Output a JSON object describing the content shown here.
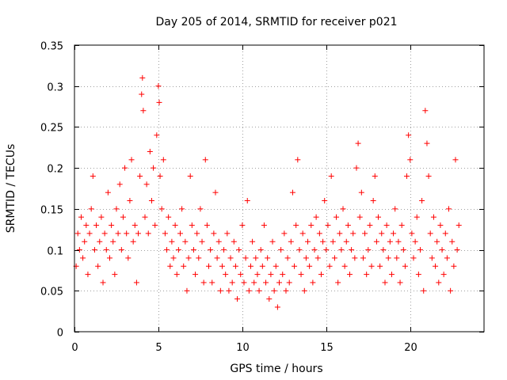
{
  "chart_data": {
    "type": "scatter",
    "title": "Day 205 of 2014, SRMTID for receiver p021",
    "xlabel": "GPS time / hours",
    "ylabel": "SRMTID / TECUs",
    "xlim": [
      0,
      24.4
    ],
    "ylim": [
      0,
      0.35
    ],
    "xticks": [
      0,
      5,
      10,
      15,
      20
    ],
    "xtick_labels": [
      "0",
      "5",
      "10",
      "15",
      "20"
    ],
    "yticks": [
      0,
      0.05,
      0.1,
      0.15,
      0.2,
      0.25,
      0.3,
      0.35
    ],
    "ytick_labels": [
      "0",
      "0.05",
      "0.1",
      "0.15",
      "0.2",
      "0.25",
      "0.3",
      "0.35"
    ],
    "grid": true,
    "marker": "plus",
    "color": "#ff0000",
    "data_range_x": [
      0,
      23.0
    ],
    "series": [
      {
        "name": "SRMTID",
        "points": [
          [
            0.1,
            0.08
          ],
          [
            0.2,
            0.12
          ],
          [
            0.3,
            0.1
          ],
          [
            0.4,
            0.14
          ],
          [
            0.5,
            0.09
          ],
          [
            0.6,
            0.11
          ],
          [
            0.7,
            0.13
          ],
          [
            0.8,
            0.07
          ],
          [
            0.9,
            0.12
          ],
          [
            1.0,
            0.15
          ],
          [
            1.1,
            0.19
          ],
          [
            1.2,
            0.1
          ],
          [
            1.3,
            0.13
          ],
          [
            1.4,
            0.08
          ],
          [
            1.5,
            0.11
          ],
          [
            1.6,
            0.14
          ],
          [
            1.7,
            0.06
          ],
          [
            1.8,
            0.12
          ],
          [
            1.9,
            0.1
          ],
          [
            2.0,
            0.17
          ],
          [
            2.1,
            0.09
          ],
          [
            2.2,
            0.13
          ],
          [
            2.3,
            0.11
          ],
          [
            2.4,
            0.07
          ],
          [
            2.5,
            0.15
          ],
          [
            2.6,
            0.12
          ],
          [
            2.7,
            0.18
          ],
          [
            2.8,
            0.1
          ],
          [
            2.9,
            0.14
          ],
          [
            3.0,
            0.2
          ],
          [
            3.1,
            0.12
          ],
          [
            3.2,
            0.09
          ],
          [
            3.3,
            0.16
          ],
          [
            3.4,
            0.21
          ],
          [
            3.5,
            0.11
          ],
          [
            3.6,
            0.13
          ],
          [
            3.7,
            0.06
          ],
          [
            3.8,
            0.12
          ],
          [
            3.9,
            0.19
          ],
          [
            4.0,
            0.29
          ],
          [
            4.05,
            0.31
          ],
          [
            4.1,
            0.27
          ],
          [
            4.2,
            0.14
          ],
          [
            4.3,
            0.18
          ],
          [
            4.4,
            0.12
          ],
          [
            4.5,
            0.22
          ],
          [
            4.6,
            0.16
          ],
          [
            4.7,
            0.2
          ],
          [
            4.8,
            0.13
          ],
          [
            4.9,
            0.24
          ],
          [
            5.0,
            0.3
          ],
          [
            5.05,
            0.28
          ],
          [
            5.1,
            0.19
          ],
          [
            5.2,
            0.15
          ],
          [
            5.3,
            0.21
          ],
          [
            5.4,
            0.12
          ],
          [
            5.5,
            0.1
          ],
          [
            5.6,
            0.14
          ],
          [
            5.7,
            0.08
          ],
          [
            5.8,
            0.11
          ],
          [
            5.9,
            0.09
          ],
          [
            6.0,
            0.13
          ],
          [
            6.1,
            0.07
          ],
          [
            6.2,
            0.1
          ],
          [
            6.3,
            0.12
          ],
          [
            6.4,
            0.15
          ],
          [
            6.5,
            0.08
          ],
          [
            6.6,
            0.11
          ],
          [
            6.7,
            0.05
          ],
          [
            6.8,
            0.09
          ],
          [
            6.9,
            0.19
          ],
          [
            7.0,
            0.13
          ],
          [
            7.1,
            0.1
          ],
          [
            7.2,
            0.07
          ],
          [
            7.3,
            0.12
          ],
          [
            7.4,
            0.09
          ],
          [
            7.5,
            0.15
          ],
          [
            7.6,
            0.11
          ],
          [
            7.7,
            0.06
          ],
          [
            7.8,
            0.21
          ],
          [
            7.9,
            0.13
          ],
          [
            8.0,
            0.08
          ],
          [
            8.1,
            0.1
          ],
          [
            8.2,
            0.06
          ],
          [
            8.3,
            0.12
          ],
          [
            8.4,
            0.17
          ],
          [
            8.5,
            0.09
          ],
          [
            8.6,
            0.11
          ],
          [
            8.7,
            0.05
          ],
          [
            8.8,
            0.08
          ],
          [
            8.9,
            0.1
          ],
          [
            9.0,
            0.07
          ],
          [
            9.1,
            0.12
          ],
          [
            9.2,
            0.05
          ],
          [
            9.3,
            0.09
          ],
          [
            9.4,
            0.06
          ],
          [
            9.5,
            0.11
          ],
          [
            9.6,
            0.08
          ],
          [
            9.7,
            0.04
          ],
          [
            9.8,
            0.1
          ],
          [
            9.9,
            0.07
          ],
          [
            10.0,
            0.13
          ],
          [
            10.1,
            0.06
          ],
          [
            10.2,
            0.09
          ],
          [
            10.3,
            0.16
          ],
          [
            10.4,
            0.05
          ],
          [
            10.5,
            0.08
          ],
          [
            10.6,
            0.11
          ],
          [
            10.7,
            0.06
          ],
          [
            10.8,
            0.09
          ],
          [
            10.9,
            0.07
          ],
          [
            11.0,
            0.05
          ],
          [
            11.1,
            0.1
          ],
          [
            11.2,
            0.08
          ],
          [
            11.3,
            0.13
          ],
          [
            11.4,
            0.06
          ],
          [
            11.5,
            0.09
          ],
          [
            11.6,
            0.04
          ],
          [
            11.7,
            0.07
          ],
          [
            11.8,
            0.11
          ],
          [
            11.9,
            0.05
          ],
          [
            12.0,
            0.08
          ],
          [
            12.1,
            0.03
          ],
          [
            12.2,
            0.06
          ],
          [
            12.3,
            0.1
          ],
          [
            12.4,
            0.07
          ],
          [
            12.5,
            0.12
          ],
          [
            12.6,
            0.05
          ],
          [
            12.7,
            0.09
          ],
          [
            12.8,
            0.06
          ],
          [
            12.9,
            0.11
          ],
          [
            13.0,
            0.17
          ],
          [
            13.1,
            0.08
          ],
          [
            13.2,
            0.13
          ],
          [
            13.3,
            0.21
          ],
          [
            13.4,
            0.1
          ],
          [
            13.5,
            0.07
          ],
          [
            13.6,
            0.12
          ],
          [
            13.7,
            0.05
          ],
          [
            13.8,
            0.09
          ],
          [
            13.9,
            0.11
          ],
          [
            14.0,
            0.08
          ],
          [
            14.1,
            0.13
          ],
          [
            14.2,
            0.06
          ],
          [
            14.3,
            0.1
          ],
          [
            14.4,
            0.14
          ],
          [
            14.5,
            0.09
          ],
          [
            14.6,
            0.12
          ],
          [
            14.7,
            0.07
          ],
          [
            14.8,
            0.11
          ],
          [
            14.9,
            0.16
          ],
          [
            15.0,
            0.1
          ],
          [
            15.1,
            0.13
          ],
          [
            15.2,
            0.08
          ],
          [
            15.3,
            0.19
          ],
          [
            15.4,
            0.11
          ],
          [
            15.5,
            0.09
          ],
          [
            15.6,
            0.14
          ],
          [
            15.7,
            0.06
          ],
          [
            15.8,
            0.12
          ],
          [
            15.9,
            0.1
          ],
          [
            16.0,
            0.15
          ],
          [
            16.1,
            0.08
          ],
          [
            16.2,
            0.11
          ],
          [
            16.3,
            0.13
          ],
          [
            16.4,
            0.07
          ],
          [
            16.5,
            0.1
          ],
          [
            16.6,
            0.12
          ],
          [
            16.7,
            0.09
          ],
          [
            16.8,
            0.2
          ],
          [
            16.9,
            0.23
          ],
          [
            17.0,
            0.14
          ],
          [
            17.1,
            0.17
          ],
          [
            17.2,
            0.09
          ],
          [
            17.3,
            0.12
          ],
          [
            17.4,
            0.07
          ],
          [
            17.5,
            0.1
          ],
          [
            17.6,
            0.13
          ],
          [
            17.7,
            0.08
          ],
          [
            17.8,
            0.16
          ],
          [
            17.9,
            0.19
          ],
          [
            18.0,
            0.11
          ],
          [
            18.1,
            0.14
          ],
          [
            18.2,
            0.08
          ],
          [
            18.3,
            0.12
          ],
          [
            18.4,
            0.1
          ],
          [
            18.5,
            0.06
          ],
          [
            18.6,
            0.13
          ],
          [
            18.7,
            0.09
          ],
          [
            18.8,
            0.11
          ],
          [
            18.9,
            0.07
          ],
          [
            19.0,
            0.12
          ],
          [
            19.1,
            0.15
          ],
          [
            19.2,
            0.09
          ],
          [
            19.3,
            0.11
          ],
          [
            19.4,
            0.06
          ],
          [
            19.5,
            0.13
          ],
          [
            19.6,
            0.1
          ],
          [
            19.7,
            0.08
          ],
          [
            19.8,
            0.19
          ],
          [
            19.9,
            0.24
          ],
          [
            20.0,
            0.21
          ],
          [
            20.1,
            0.12
          ],
          [
            20.2,
            0.09
          ],
          [
            20.3,
            0.11
          ],
          [
            20.4,
            0.14
          ],
          [
            20.5,
            0.07
          ],
          [
            20.6,
            0.1
          ],
          [
            20.7,
            0.16
          ],
          [
            20.8,
            0.05
          ],
          [
            20.9,
            0.27
          ],
          [
            21.0,
            0.23
          ],
          [
            21.1,
            0.19
          ],
          [
            21.2,
            0.12
          ],
          [
            21.3,
            0.09
          ],
          [
            21.4,
            0.14
          ],
          [
            21.5,
            0.08
          ],
          [
            21.6,
            0.11
          ],
          [
            21.7,
            0.06
          ],
          [
            21.8,
            0.13
          ],
          [
            21.9,
            0.1
          ],
          [
            22.0,
            0.07
          ],
          [
            22.1,
            0.12
          ],
          [
            22.2,
            0.09
          ],
          [
            22.3,
            0.15
          ],
          [
            22.4,
            0.05
          ],
          [
            22.5,
            0.11
          ],
          [
            22.6,
            0.08
          ],
          [
            22.7,
            0.21
          ],
          [
            22.8,
            0.1
          ],
          [
            22.9,
            0.13
          ]
        ]
      }
    ]
  }
}
